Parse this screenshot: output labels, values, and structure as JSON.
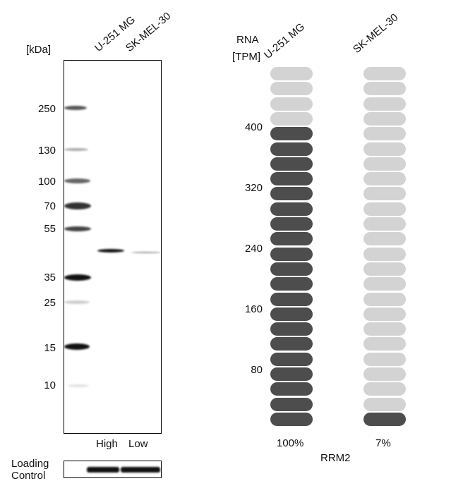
{
  "western_blot": {
    "kda_label": "[kDa]",
    "lanes": [
      "U-251 MG",
      "SK-MEL-30"
    ],
    "markers": [
      "250",
      "130",
      "100",
      "70",
      "55",
      "35",
      "25",
      "15",
      "10"
    ],
    "lane_levels": [
      "High",
      "Low"
    ],
    "loading_control_label": [
      "Loading",
      "Control"
    ]
  },
  "chart_data": {
    "type": "bar",
    "title": "RRM2",
    "ylabel": [
      "RNA",
      "[TPM]"
    ],
    "yticks": [
      "400",
      "320",
      "240",
      "160",
      "80"
    ],
    "ylim": [
      0,
      480
    ],
    "categories": [
      "U-251 MG",
      "SK-MEL-30"
    ],
    "pills_total": 24,
    "pills_filled": [
      20,
      1
    ],
    "percent_labels": [
      "100%",
      "7%"
    ],
    "colors": {
      "filled": "#4d4d4d",
      "empty": "#d3d3d3"
    }
  }
}
